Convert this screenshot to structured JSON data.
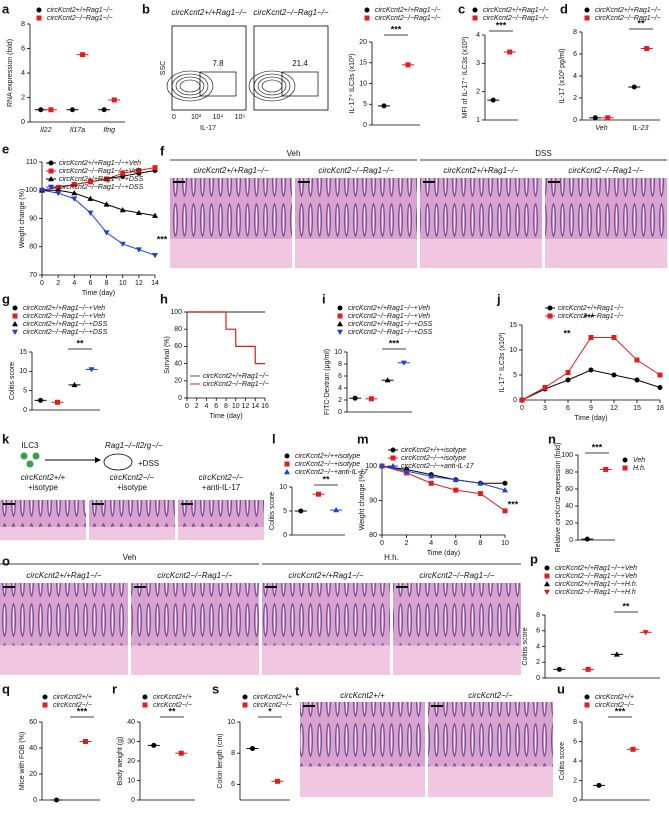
{
  "chart_data": [
    {
      "label": "a",
      "type": "dot",
      "ylabel": "RNA expression (fold)",
      "categories": [
        "Il22",
        "Il17a",
        "Ifng"
      ],
      "series": [
        {
          "name": "circKcnt2+/+Rag1−/−",
          "color": "#000000",
          "marker": "circle",
          "values": [
            1,
            1,
            1
          ]
        },
        {
          "name": "circKcnt2−/−Rag1−/−",
          "color": "#e41a1c",
          "marker": "square",
          "values": [
            1,
            5.5,
            1.8
          ]
        }
      ],
      "ylim": [
        0,
        8
      ],
      "yticks": [
        0,
        2,
        4,
        6,
        8
      ]
    },
    {
      "type": "dot",
      "ylabel": "IL-17⁺ ILC3s (x10³)",
      "series": [
        {
          "name": "circKcnt2+/+Rag1−/−",
          "color": "#000000",
          "marker": "circle",
          "values": [
            4.6
          ]
        },
        {
          "name": "circKcnt2−/−Rag1−/−",
          "color": "#e41a1c",
          "marker": "square",
          "values": [
            14.5
          ]
        }
      ],
      "ylim": [
        0,
        20
      ],
      "yticks": [
        0,
        5,
        10,
        15,
        20
      ],
      "annotations": [
        "***"
      ]
    },
    {
      "label": "c",
      "type": "dot",
      "ylabel": "MFI of IL-17⁺ ILC3s (x10³)",
      "series": [
        {
          "name": "circKcnt2+/+Rag1−/−",
          "color": "#000000",
          "marker": "circle",
          "values": [
            1.7
          ]
        },
        {
          "name": "circKcnt2−/−Rag1−/−",
          "color": "#e41a1c",
          "marker": "square",
          "values": [
            3.4
          ]
        }
      ],
      "ylim": [
        1,
        4
      ],
      "yticks": [
        1,
        2,
        3,
        4
      ],
      "annotations": [
        "***"
      ]
    },
    {
      "label": "d",
      "type": "dot",
      "ylabel": "IL-17 (x10² pg/ml)",
      "categories": [
        "Veh",
        "IL-23"
      ],
      "series": [
        {
          "name": "circKcnt2+/+Rag1−/−",
          "color": "#000000",
          "marker": "circle",
          "values": [
            0.2,
            3
          ]
        },
        {
          "name": "circKcnt2−/−Rag1−/−",
          "color": "#e41a1c",
          "marker": "square",
          "values": [
            0.2,
            6.5
          ]
        }
      ],
      "ylim": [
        0,
        8
      ],
      "yticks": [
        0,
        2,
        4,
        6,
        8
      ],
      "annotations": [
        "**"
      ]
    },
    {
      "label": "e",
      "type": "line",
      "ylabel": "Weight change (%)",
      "xlabel": "Time (day)",
      "x": [
        0,
        2,
        4,
        6,
        8,
        10,
        12,
        14
      ],
      "series": [
        {
          "name": "circKcnt2+/+Rag1−/−+Veh",
          "color": "#000000",
          "marker": "circle",
          "values": [
            100,
            101,
            102,
            103,
            104,
            105,
            106,
            107
          ]
        },
        {
          "name": "circKcnt2−/−Rag1−/−+Veh",
          "color": "#e41a1c",
          "marker": "square",
          "values": [
            100,
            101,
            102,
            103,
            104,
            106,
            107,
            108
          ]
        },
        {
          "name": "circKcnt2+/+Rag1−/−+DSS",
          "color": "#000000",
          "marker": "triangle",
          "values": [
            100,
            100,
            99,
            97,
            95,
            93,
            92,
            91
          ]
        },
        {
          "name": "circKcnt2−/−Rag1−/−+DSS",
          "color": "#1f3fd6",
          "marker": "triangle-down",
          "values": [
            100,
            99,
            97,
            92,
            85,
            81,
            79,
            77
          ]
        }
      ],
      "ylim": [
        70,
        110
      ],
      "yticks": [
        70,
        80,
        90,
        100,
        110
      ],
      "xlim": [
        0,
        14
      ],
      "xticks": [
        0,
        2,
        4,
        6,
        8,
        10,
        12,
        14
      ],
      "annotations": [
        "***"
      ]
    },
    {
      "label": "g",
      "type": "dot",
      "ylabel": "Colitis score",
      "series": [
        {
          "name": "circKcnt2+/+Rag1−/−+Veh",
          "color": "#000000",
          "marker": "circle",
          "values": [
            2.5
          ]
        },
        {
          "name": "circKcnt2−/−Rag1−/−+Veh",
          "color": "#e41a1c",
          "marker": "square",
          "values": [
            2
          ]
        },
        {
          "name": "circKcnt2+/+Rag1−/−+DSS",
          "color": "#000000",
          "marker": "triangle",
          "values": [
            6.5
          ]
        },
        {
          "name": "circKcnt2−/−Rag1−/−+DSS",
          "color": "#1f3fd6",
          "marker": "triangle-down",
          "values": [
            10.5
          ]
        }
      ],
      "ylim": [
        0,
        15
      ],
      "yticks": [
        0,
        5,
        10,
        15
      ],
      "annotations": [
        "**"
      ]
    },
    {
      "label": "h",
      "type": "step",
      "ylabel": "Survival (%)",
      "xlabel": "Time (day)",
      "series": [
        {
          "name": "circKcnt2+/+Rag1−/−",
          "color": "#555555",
          "x": [
            0,
            16
          ],
          "values": [
            100,
            100
          ]
        },
        {
          "name": "circKcnt2−/−Rag1−/−",
          "color": "#e41a1c",
          "x": [
            0,
            8,
            10,
            14,
            16
          ],
          "values": [
            100,
            80,
            60,
            40,
            40
          ]
        }
      ],
      "ylim": [
        0,
        100
      ],
      "yticks": [
        0,
        20,
        40,
        60,
        80,
        100
      ],
      "xlim": [
        0,
        16
      ],
      "xticks": [
        0,
        2,
        4,
        6,
        8,
        10,
        12,
        14,
        16
      ]
    },
    {
      "label": "i",
      "type": "dot",
      "ylabel": "FITC-Dextran (μg/ml)",
      "series": [
        {
          "name": "circKcnt2+/+Rag1−/−+Veh",
          "color": "#000000",
          "marker": "circle",
          "values": [
            2.3
          ]
        },
        {
          "name": "circKcnt2−/−Rag1−/−+Veh",
          "color": "#e41a1c",
          "marker": "square",
          "values": [
            2.2
          ]
        },
        {
          "name": "circKcnt2+/+Rag1−/−+DSS",
          "color": "#000000",
          "marker": "triangle",
          "values": [
            5.3
          ]
        },
        {
          "name": "circKcnt2−/−Rag1−/−+DSS",
          "color": "#1f3fd6",
          "marker": "triangle-down",
          "values": [
            8.2
          ]
        }
      ],
      "ylim": [
        0,
        10
      ],
      "yticks": [
        0,
        2,
        4,
        6,
        8,
        10
      ],
      "annotations": [
        "***"
      ]
    },
    {
      "label": "j",
      "type": "line",
      "ylabel": "IL-17⁺ ILC3s (x10³)",
      "xlabel": "Time (day)",
      "x": [
        0,
        3,
        6,
        9,
        12,
        15,
        18
      ],
      "series": [
        {
          "name": "circKcnt2+/+Rag1−/−",
          "color": "#000000",
          "marker": "circle",
          "values": [
            0,
            2.2,
            4,
            6,
            5,
            4,
            2.5
          ]
        },
        {
          "name": "circKcnt2−/−Rag1−/−",
          "color": "#e41a1c",
          "marker": "square",
          "values": [
            0,
            2.5,
            5.5,
            12.5,
            12.5,
            8,
            5
          ]
        }
      ],
      "ylim": [
        0,
        15
      ],
      "yticks": [
        0,
        5,
        10,
        15
      ],
      "xlim": [
        0,
        18
      ],
      "xticks": [
        0,
        3,
        6,
        9,
        12,
        15,
        18
      ],
      "annotations": [
        "**",
        "***"
      ]
    },
    {
      "label": "l",
      "type": "dot",
      "ylabel": "Colitis score",
      "series": [
        {
          "name": "circKcnt2+/++isotype",
          "color": "#000000",
          "marker": "circle",
          "values": [
            5
          ]
        },
        {
          "name": "circKcnt2−/−+isotype",
          "color": "#e41a1c",
          "marker": "square",
          "values": [
            8.5
          ]
        },
        {
          "name": "circKcnt2−/−+anti-IL-17",
          "color": "#1f3fd6",
          "marker": "triangle",
          "values": [
            5.2
          ]
        }
      ],
      "ylim": [
        0,
        10
      ],
      "yticks": [
        0,
        5,
        10
      ],
      "annotations": [
        "**"
      ]
    },
    {
      "label": "m",
      "type": "line",
      "ylabel": "Weight change (%)",
      "xlabel": "Time (day)",
      "x": [
        0,
        2,
        4,
        6,
        8,
        10
      ],
      "series": [
        {
          "name": "circKcnt2+/++isotype",
          "color": "#000000",
          "marker": "circle",
          "values": [
            100,
            99,
            97.5,
            96,
            95,
            95
          ]
        },
        {
          "name": "circKcnt2−/−+isotype",
          "color": "#e41a1c",
          "marker": "square",
          "values": [
            100,
            98,
            95,
            93,
            92,
            87
          ]
        },
        {
          "name": "circKcnt2−/−+anti-IL-17",
          "color": "#1f3fd6",
          "marker": "triangle",
          "values": [
            100,
            98.5,
            97,
            96,
            95,
            93
          ]
        }
      ],
      "ylim": [
        80,
        100
      ],
      "yticks": [
        80,
        90,
        100
      ],
      "xlim": [
        0,
        10
      ],
      "xticks": [
        0,
        2,
        4,
        6,
        8,
        10
      ],
      "annotations": [
        "***"
      ]
    },
    {
      "label": "n",
      "type": "dot",
      "ylabel": "Relative circKcnt2 expression (fold)",
      "series": [
        {
          "name": "Veh",
          "color": "#000000",
          "marker": "circle",
          "values": [
            1
          ]
        },
        {
          "name": "H.h.",
          "color": "#e41a1c",
          "marker": "square",
          "values": [
            83
          ]
        }
      ],
      "ylim": [
        0,
        100
      ],
      "yticks": [
        0,
        20,
        40,
        60,
        80,
        100
      ],
      "annotations": [
        "***"
      ]
    },
    {
      "label": "p",
      "type": "dot",
      "ylabel": "Colitis score",
      "series": [
        {
          "name": "circKcnt2+/+Rag1−/−+Veh",
          "color": "#000000",
          "marker": "circle",
          "values": [
            1.1
          ]
        },
        {
          "name": "circKcnt2−/−Rag1−/−+Veh",
          "color": "#e41a1c",
          "marker": "square",
          "values": [
            1.1
          ]
        },
        {
          "name": "circKcnt2+/+Rag1−/−+H.h.",
          "color": "#000000",
          "marker": "triangle",
          "values": [
            3
          ]
        },
        {
          "name": "circKcnt2−/−Rag1−/−+H.h",
          "color": "#e41a1c",
          "marker": "triangle-down",
          "values": [
            5.8
          ]
        }
      ],
      "ylim": [
        0,
        8
      ],
      "yticks": [
        0,
        2,
        4,
        6,
        8
      ],
      "annotations": [
        "**"
      ]
    },
    {
      "label": "q",
      "type": "dot",
      "ylabel": "Mice with FOB (%)",
      "series": [
        {
          "name": "circKcnt2+/+",
          "color": "#000000",
          "marker": "circle",
          "values": [
            0
          ]
        },
        {
          "name": "circKcnt2−/−",
          "color": "#e41a1c",
          "marker": "square",
          "values": [
            45
          ]
        }
      ],
      "ylim": [
        0,
        60
      ],
      "yticks": [
        0,
        20,
        40,
        60
      ],
      "annotations": [
        "***"
      ]
    },
    {
      "label": "r",
      "type": "dot",
      "ylabel": "Body weight (g)",
      "series": [
        {
          "name": "circKcnt2+/+",
          "color": "#000000",
          "marker": "circle",
          "values": [
            28
          ]
        },
        {
          "name": "circKcnt2−/−",
          "color": "#e41a1c",
          "marker": "square",
          "values": [
            24
          ]
        }
      ],
      "ylim": [
        0,
        40
      ],
      "yticks": [
        0,
        10,
        20,
        30,
        40
      ],
      "annotations": [
        "**"
      ]
    },
    {
      "label": "s",
      "type": "dot",
      "ylabel": "Colon length (cm)",
      "series": [
        {
          "name": "circKcnt2+/+",
          "color": "#000000",
          "marker": "circle",
          "values": [
            8.3
          ]
        },
        {
          "name": "circKcnt2−/−",
          "color": "#e41a1c",
          "marker": "square",
          "values": [
            6.2
          ]
        }
      ],
      "ylim": [
        5,
        10
      ],
      "yticks": [
        6,
        8,
        10
      ],
      "annotations": [
        "*"
      ]
    },
    {
      "label": "u",
      "type": "dot",
      "ylabel": "Colitis score",
      "series": [
        {
          "name": "circKcnt2+/+",
          "color": "#000000",
          "marker": "circle",
          "values": [
            1.5
          ]
        },
        {
          "name": "circKcnt2−/−",
          "color": "#e41a1c",
          "marker": "square",
          "values": [
            5.2
          ]
        }
      ],
      "ylim": [
        0,
        8
      ],
      "yticks": [
        0,
        2,
        4,
        6,
        8
      ],
      "annotations": [
        "***"
      ]
    }
  ],
  "flow": {
    "label": "b",
    "plots": [
      {
        "title": "circKcnt2+/+Rag1−/−",
        "gate": 7.8
      },
      {
        "title": "circKcnt2−/−Rag1−/−",
        "gate": 21.4
      }
    ],
    "ylabel": "SSC",
    "xlabel": "IL-17",
    "xticks": [
      "0",
      "10³",
      "10⁴",
      "10⁵"
    ]
  },
  "histology": [
    {
      "label": "f",
      "groups": [
        {
          "title": "Veh",
          "images": [
            "circKcnt2+/+Rag1−/−",
            "circKcnt2−/−Rag1−/−"
          ]
        },
        {
          "title": "DSS",
          "images": [
            "circKcnt2+/+Rag1−/−",
            "circKcnt2−/−Rag1−/−"
          ]
        }
      ]
    },
    {
      "label": "k",
      "diagram": {
        "cells": "ILC3",
        "mouse": "Rag1−/−Il2rg−/−",
        "treatment": "+DSS"
      },
      "groups": [
        {
          "images": [
            [
              "circKcnt2+/+",
              "+isotype"
            ],
            [
              "circKcnt2−/−",
              "+isotype"
            ],
            [
              "circKcnt2−/−",
              "+anti-IL-17"
            ]
          ]
        }
      ]
    },
    {
      "label": "o",
      "groups": [
        {
          "title": "Veh",
          "images": [
            "circKcnt2+/+Rag1−/−",
            "circKcnt2−/−Rag1−/−"
          ]
        },
        {
          "title": "H.h.",
          "images": [
            "circKcnt2+/+Rag1−/−",
            "circKcnt2−/−Rag1−/−"
          ]
        }
      ]
    },
    {
      "label": "t",
      "groups": [
        {
          "images": [
            "circKcnt2+/+",
            "circKcnt2−/−"
          ]
        }
      ]
    }
  ]
}
